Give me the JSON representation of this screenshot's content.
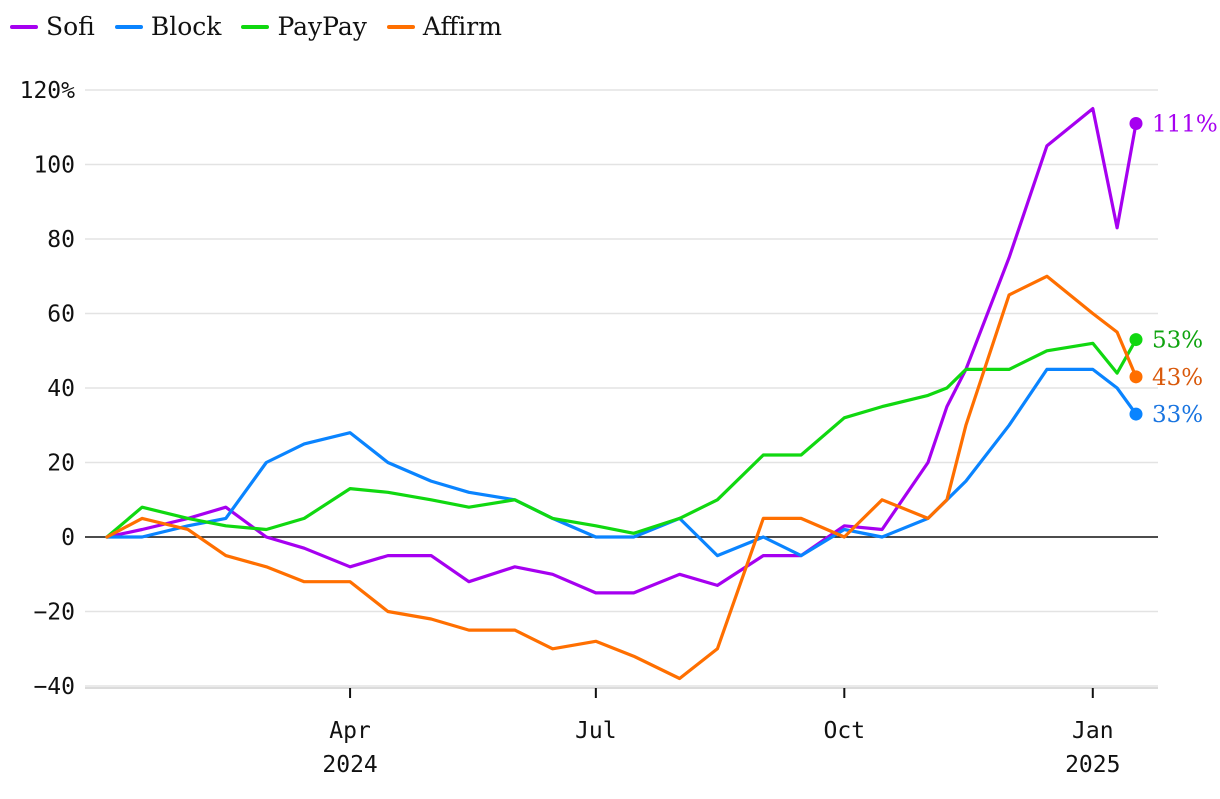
{
  "chart_data": {
    "type": "line",
    "title": "",
    "xlabel": "",
    "ylabel": "",
    "ylim": [
      -40,
      120
    ],
    "y_ticks": [
      {
        "value": -40,
        "label": "−40"
      },
      {
        "value": -20,
        "label": "−20"
      },
      {
        "value": 0,
        "label": "0"
      },
      {
        "value": 20,
        "label": "20"
      },
      {
        "value": 40,
        "label": "40"
      },
      {
        "value": 60,
        "label": "60"
      },
      {
        "value": 80,
        "label": "80"
      },
      {
        "value": 100,
        "label": "100"
      },
      {
        "value": 120,
        "label": "120%"
      }
    ],
    "x_range": [
      "2024-01-02",
      "2025-01-17"
    ],
    "x_ticks": [
      {
        "date": "2024-04-01",
        "label": "Apr",
        "sublabel": "2024"
      },
      {
        "date": "2024-07-01",
        "label": "Jul",
        "sublabel": ""
      },
      {
        "date": "2024-10-01",
        "label": "Oct",
        "sublabel": ""
      },
      {
        "date": "2025-01-01",
        "label": "Jan",
        "sublabel": "2025"
      }
    ],
    "grid": true,
    "legend_position": "top-left",
    "x": [
      "2024-01-02",
      "2024-01-15",
      "2024-02-01",
      "2024-02-15",
      "2024-03-01",
      "2024-03-15",
      "2024-04-01",
      "2024-04-15",
      "2024-05-01",
      "2024-05-15",
      "2024-06-01",
      "2024-06-15",
      "2024-07-01",
      "2024-07-15",
      "2024-08-01",
      "2024-08-15",
      "2024-09-01",
      "2024-09-15",
      "2024-10-01",
      "2024-10-15",
      "2024-11-01",
      "2024-11-08",
      "2024-11-15",
      "2024-12-01",
      "2024-12-15",
      "2025-01-01",
      "2025-01-10",
      "2025-01-17"
    ],
    "series": [
      {
        "name": "Sofi",
        "color": "#a600f0",
        "label_color": "#a600f0",
        "end_label": "111%",
        "values": [
          0,
          2,
          5,
          8,
          0,
          -3,
          -8,
          -5,
          -5,
          -12,
          -8,
          -10,
          -15,
          -15,
          -10,
          -13,
          -5,
          -5,
          3,
          2,
          20,
          35,
          45,
          75,
          105,
          115,
          83,
          111
        ]
      },
      {
        "name": "Block",
        "color": "#0a84ff",
        "label_color": "#1874e0",
        "end_label": "33%",
        "values": [
          0,
          0,
          3,
          5,
          20,
          25,
          28,
          20,
          15,
          12,
          10,
          5,
          0,
          0,
          5,
          -5,
          0,
          -5,
          2,
          0,
          5,
          10,
          15,
          30,
          45,
          45,
          40,
          33
        ]
      },
      {
        "name": "PayPay",
        "color": "#10d810",
        "label_color": "#0fa30f",
        "end_label": "53%",
        "values": [
          0,
          8,
          5,
          3,
          2,
          5,
          13,
          12,
          10,
          8,
          10,
          5,
          3,
          1,
          5,
          10,
          22,
          22,
          32,
          35,
          38,
          40,
          45,
          45,
          50,
          52,
          44,
          53
        ]
      },
      {
        "name": "Affirm",
        "color": "#ff6f00",
        "label_color": "#d9590b",
        "end_label": "43%",
        "values": [
          0,
          5,
          2,
          -5,
          -8,
          -12,
          -12,
          -20,
          -22,
          -25,
          -25,
          -30,
          -28,
          -32,
          -38,
          -30,
          5,
          5,
          0,
          10,
          5,
          10,
          30,
          65,
          70,
          60,
          55,
          43
        ]
      }
    ]
  }
}
